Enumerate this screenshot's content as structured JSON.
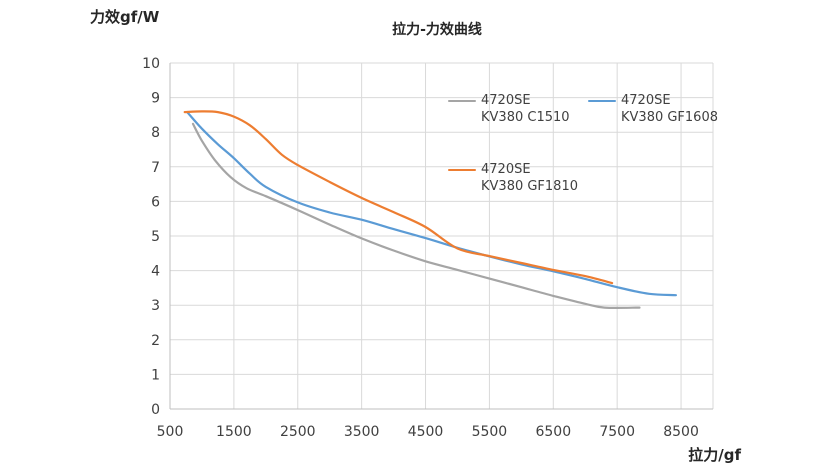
{
  "chart_data": {
    "type": "line",
    "title": "拉力-力效曲线",
    "xlabel": "拉力/gf",
    "ylabel": "力效gf/W",
    "xlim": [
      500,
      9000
    ],
    "ylim": [
      0,
      10
    ],
    "xticks": [
      500,
      1500,
      2500,
      3500,
      4500,
      5500,
      6500,
      7500,
      8500
    ],
    "yticks": [
      0,
      1,
      2,
      3,
      4,
      5,
      6,
      7,
      8,
      9,
      10
    ],
    "grid": true,
    "legend": "top-right",
    "series": [
      {
        "name": "4720SE\nKV380 C1510",
        "color": "#a5a5a5",
        "x": [
          860,
          1000,
          1200,
          1450,
          1700,
          2000,
          2500,
          3000,
          3500,
          4000,
          4500,
          5000,
          5500,
          6000,
          6500,
          7000,
          7300,
          7850
        ],
        "y": [
          8.24,
          7.75,
          7.2,
          6.7,
          6.38,
          6.15,
          5.75,
          5.33,
          4.93,
          4.58,
          4.27,
          4.02,
          3.77,
          3.52,
          3.27,
          3.04,
          2.93,
          2.93
        ]
      },
      {
        "name": "4720SE\nKV380 GF1608",
        "color": "#5b9bd5",
        "x": [
          770,
          1000,
          1250,
          1500,
          1750,
          2000,
          2500,
          3000,
          3500,
          4000,
          4500,
          5000,
          5500,
          6000,
          6500,
          7000,
          7500,
          8000,
          8420
        ],
        "y": [
          8.58,
          8.1,
          7.65,
          7.25,
          6.8,
          6.42,
          5.97,
          5.68,
          5.47,
          5.2,
          4.94,
          4.66,
          4.41,
          4.18,
          3.98,
          3.76,
          3.52,
          3.33,
          3.29
        ]
      },
      {
        "name": "4720SE\nKV380 GF1810",
        "color": "#ed7d31",
        "x": [
          730,
          1000,
          1250,
          1500,
          1750,
          2000,
          2250,
          2500,
          3000,
          3500,
          4000,
          4500,
          5000,
          5500,
          6000,
          6500,
          7000,
          7420
        ],
        "y": [
          8.58,
          8.6,
          8.58,
          8.45,
          8.2,
          7.8,
          7.35,
          7.05,
          6.56,
          6.1,
          5.69,
          5.26,
          4.64,
          4.42,
          4.22,
          4.02,
          3.84,
          3.64
        ]
      }
    ]
  }
}
